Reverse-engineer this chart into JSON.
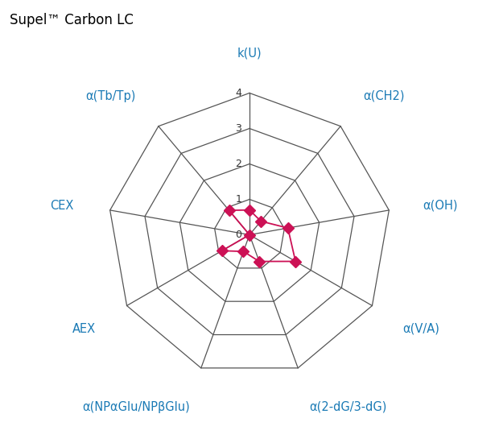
{
  "title": "Supel™ Carbon LC",
  "title_color": "#000000",
  "title_fontsize": 12,
  "categories": [
    "k(U)",
    "α(CH2)",
    "α(OH)",
    "α(V/A)",
    "α(2-dG/3-dG)",
    "α(NPαGlu/NPβGlu)",
    "AEX",
    "CEX",
    "α(Tb/Tp)"
  ],
  "label_color": "#1a7ab5",
  "label_fontsize": 10.5,
  "values": [
    0.7,
    0.5,
    1.1,
    1.5,
    0.8,
    0.5,
    0.9,
    0.0,
    0.9
  ],
  "r_max": 4,
  "r_ticks": [
    0,
    1,
    2,
    3,
    4
  ],
  "tick_labels": [
    "0",
    "1",
    "2",
    "3",
    "4"
  ],
  "grid_color": "#555555",
  "grid_linewidth": 0.9,
  "data_color": "#cc1155",
  "data_linewidth": 1.3,
  "marker_color": "#cc1155",
  "marker_size": 7,
  "background_color": "#ffffff",
  "figsize": [
    6.2,
    5.5
  ],
  "dpi": 100
}
